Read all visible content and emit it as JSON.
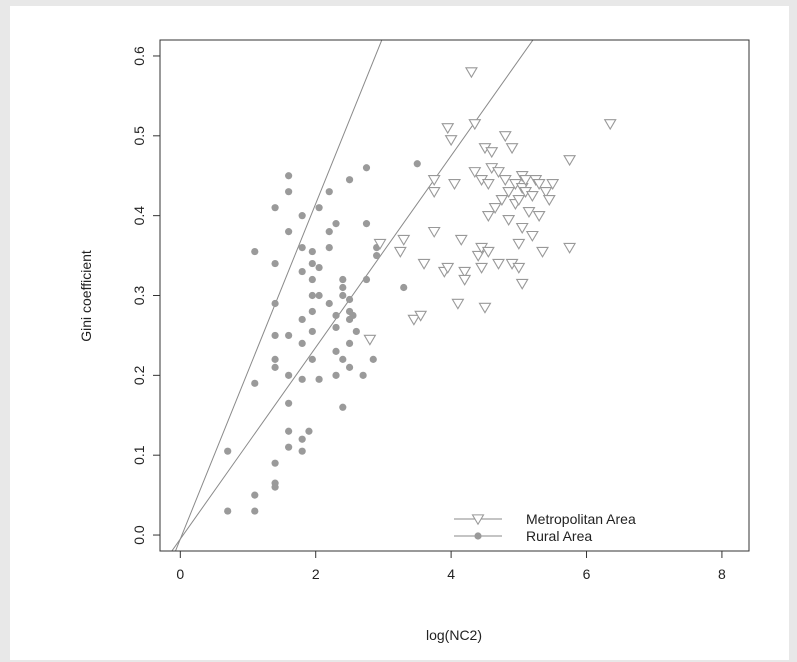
{
  "chart_data": {
    "type": "scatter",
    "title": "",
    "xlabel": "log(NC2)",
    "ylabel": "Gini coefficient",
    "xlim": [
      -0.3,
      8.4
    ],
    "ylim": [
      -0.02,
      0.62
    ],
    "xticks": [
      "0",
      "2",
      "4",
      "6",
      "8"
    ],
    "yticks": [
      "0.0",
      "0.1",
      "0.2",
      "0.3",
      "0.4",
      "0.5",
      "0.6"
    ],
    "grid": false,
    "legend_position": "bottom-right",
    "series": [
      {
        "name": "Metropolitan Area",
        "marker": "triangle-down-open",
        "color": "#999999",
        "fit": {
          "intercept": -0.005,
          "slope": 0.12
        },
        "points": [
          [
            2.8,
            0.245
          ],
          [
            2.95,
            0.365
          ],
          [
            3.3,
            0.37
          ],
          [
            3.25,
            0.355
          ],
          [
            3.45,
            0.27
          ],
          [
            3.55,
            0.275
          ],
          [
            3.6,
            0.34
          ],
          [
            3.75,
            0.38
          ],
          [
            3.75,
            0.445
          ],
          [
            3.75,
            0.43
          ],
          [
            3.9,
            0.33
          ],
          [
            3.95,
            0.335
          ],
          [
            3.95,
            0.51
          ],
          [
            4.0,
            0.495
          ],
          [
            4.05,
            0.44
          ],
          [
            4.1,
            0.29
          ],
          [
            4.15,
            0.37
          ],
          [
            4.2,
            0.33
          ],
          [
            4.2,
            0.32
          ],
          [
            4.3,
            0.58
          ],
          [
            4.35,
            0.515
          ],
          [
            4.35,
            0.455
          ],
          [
            4.4,
            0.35
          ],
          [
            4.45,
            0.335
          ],
          [
            4.45,
            0.36
          ],
          [
            4.45,
            0.445
          ],
          [
            4.5,
            0.485
          ],
          [
            4.5,
            0.285
          ],
          [
            4.55,
            0.44
          ],
          [
            4.55,
            0.4
          ],
          [
            4.55,
            0.355
          ],
          [
            4.6,
            0.48
          ],
          [
            4.6,
            0.46
          ],
          [
            4.65,
            0.41
          ],
          [
            4.7,
            0.455
          ],
          [
            4.7,
            0.34
          ],
          [
            4.75,
            0.42
          ],
          [
            4.8,
            0.5
          ],
          [
            4.8,
            0.445
          ],
          [
            4.85,
            0.43
          ],
          [
            4.85,
            0.395
          ],
          [
            4.9,
            0.485
          ],
          [
            4.9,
            0.34
          ],
          [
            4.95,
            0.44
          ],
          [
            4.95,
            0.415
          ],
          [
            5.0,
            0.335
          ],
          [
            5.0,
            0.365
          ],
          [
            5.0,
            0.42
          ],
          [
            5.05,
            0.45
          ],
          [
            5.05,
            0.435
          ],
          [
            5.1,
            0.445
          ],
          [
            5.1,
            0.43
          ],
          [
            5.15,
            0.405
          ],
          [
            5.2,
            0.425
          ],
          [
            5.25,
            0.445
          ],
          [
            5.3,
            0.44
          ],
          [
            5.3,
            0.4
          ],
          [
            5.35,
            0.355
          ],
          [
            5.4,
            0.43
          ],
          [
            5.45,
            0.42
          ],
          [
            5.5,
            0.44
          ],
          [
            5.05,
            0.315
          ],
          [
            5.05,
            0.385
          ],
          [
            5.2,
            0.375
          ],
          [
            5.75,
            0.47
          ],
          [
            5.75,
            0.36
          ],
          [
            6.35,
            0.515
          ]
        ]
      },
      {
        "name": "Rural Area",
        "marker": "circle-filled",
        "color": "#9a9a9a",
        "fit": {
          "intercept": -0.005,
          "slope": 0.21
        },
        "points": [
          [
            0.7,
            0.03
          ],
          [
            0.7,
            0.105
          ],
          [
            1.1,
            0.03
          ],
          [
            1.1,
            0.05
          ],
          [
            1.1,
            0.19
          ],
          [
            1.1,
            0.355
          ],
          [
            1.4,
            0.06
          ],
          [
            1.4,
            0.065
          ],
          [
            1.4,
            0.09
          ],
          [
            1.4,
            0.21
          ],
          [
            1.4,
            0.22
          ],
          [
            1.4,
            0.25
          ],
          [
            1.4,
            0.29
          ],
          [
            1.4,
            0.34
          ],
          [
            1.4,
            0.41
          ],
          [
            1.6,
            0.11
          ],
          [
            1.6,
            0.13
          ],
          [
            1.6,
            0.165
          ],
          [
            1.6,
            0.2
          ],
          [
            1.6,
            0.25
          ],
          [
            1.6,
            0.38
          ],
          [
            1.6,
            0.43
          ],
          [
            1.6,
            0.45
          ],
          [
            1.8,
            0.105
          ],
          [
            1.8,
            0.12
          ],
          [
            1.8,
            0.195
          ],
          [
            1.8,
            0.24
          ],
          [
            1.8,
            0.27
          ],
          [
            1.8,
            0.33
          ],
          [
            1.8,
            0.36
          ],
          [
            1.8,
            0.4
          ],
          [
            1.9,
            0.13
          ],
          [
            1.95,
            0.22
          ],
          [
            1.95,
            0.255
          ],
          [
            1.95,
            0.28
          ],
          [
            1.95,
            0.3
          ],
          [
            1.95,
            0.32
          ],
          [
            1.95,
            0.34
          ],
          [
            1.95,
            0.355
          ],
          [
            2.05,
            0.195
          ],
          [
            2.05,
            0.3
          ],
          [
            2.05,
            0.335
          ],
          [
            2.05,
            0.41
          ],
          [
            2.2,
            0.29
          ],
          [
            2.2,
            0.36
          ],
          [
            2.2,
            0.38
          ],
          [
            2.2,
            0.43
          ],
          [
            2.3,
            0.2
          ],
          [
            2.3,
            0.23
          ],
          [
            2.3,
            0.26
          ],
          [
            2.3,
            0.275
          ],
          [
            2.3,
            0.39
          ],
          [
            2.4,
            0.16
          ],
          [
            2.4,
            0.22
          ],
          [
            2.4,
            0.3
          ],
          [
            2.4,
            0.31
          ],
          [
            2.4,
            0.32
          ],
          [
            2.5,
            0.21
          ],
          [
            2.5,
            0.24
          ],
          [
            2.5,
            0.27
          ],
          [
            2.5,
            0.28
          ],
          [
            2.5,
            0.295
          ],
          [
            2.5,
            0.445
          ],
          [
            2.55,
            0.275
          ],
          [
            2.6,
            0.255
          ],
          [
            2.7,
            0.2
          ],
          [
            2.75,
            0.32
          ],
          [
            2.75,
            0.39
          ],
          [
            2.75,
            0.46
          ],
          [
            2.85,
            0.22
          ],
          [
            2.9,
            0.35
          ],
          [
            2.9,
            0.36
          ],
          [
            3.3,
            0.31
          ],
          [
            3.5,
            0.465
          ]
        ]
      }
    ]
  }
}
